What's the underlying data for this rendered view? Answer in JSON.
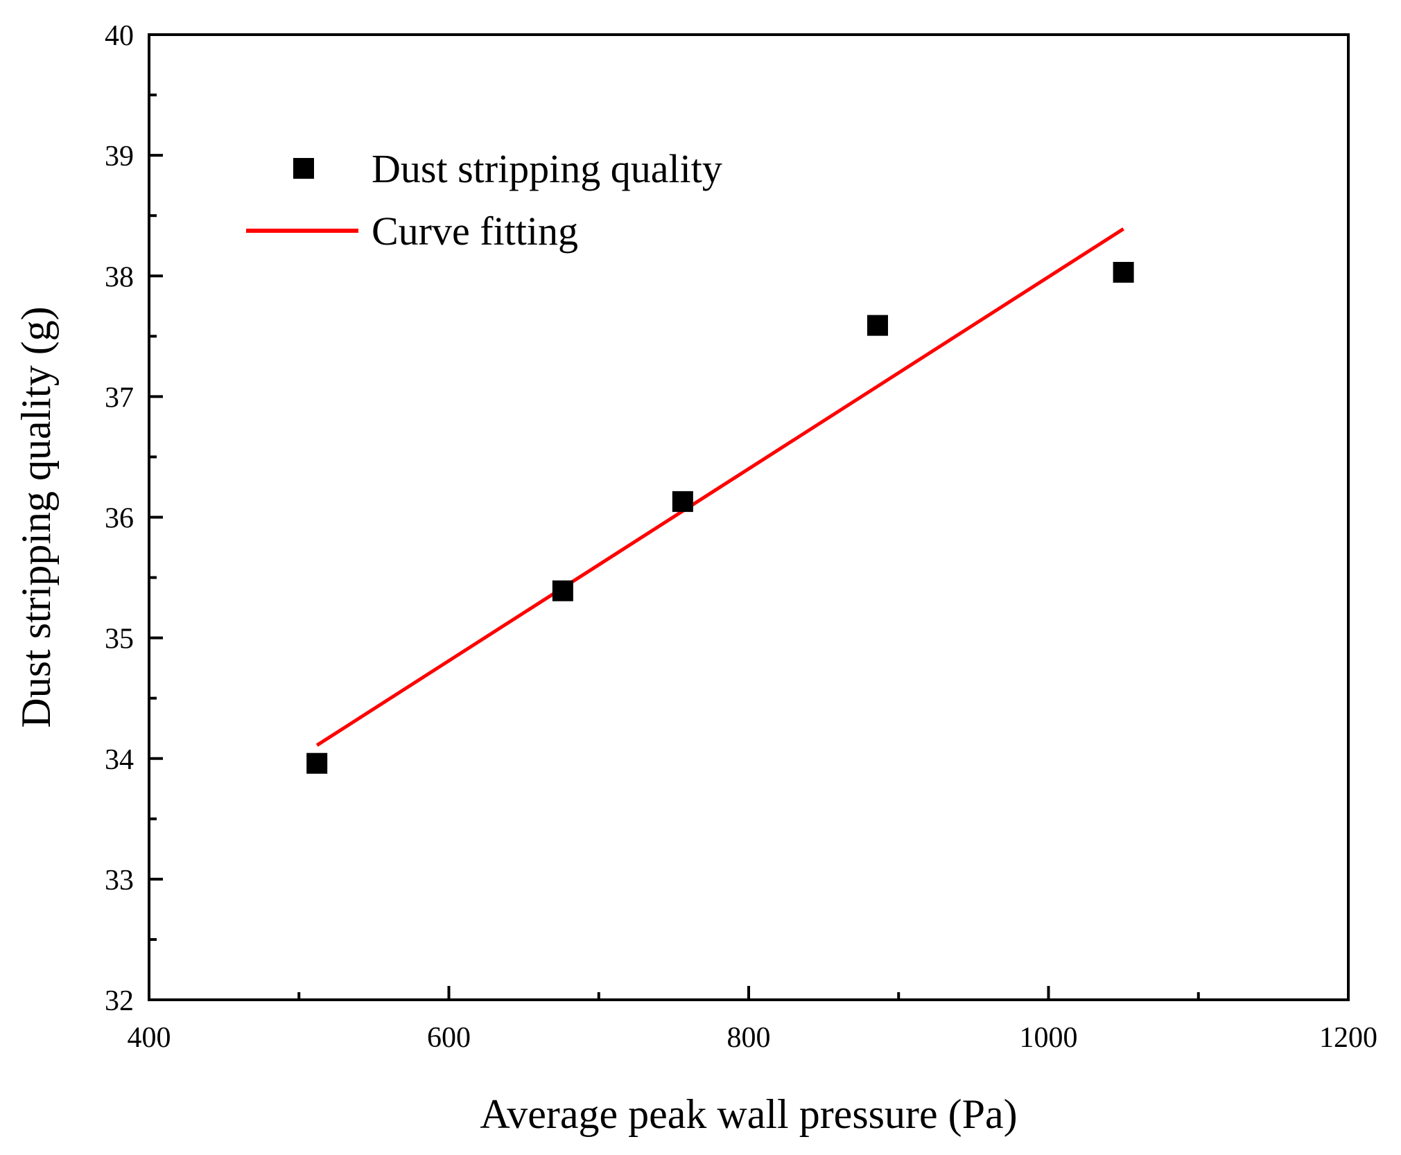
{
  "chart_data": {
    "type": "scatter",
    "title": "",
    "xlabel": "Average peak wall pressure (Pa)",
    "ylabel": "Dust stripping quality (g)",
    "xlim": [
      400,
      1200
    ],
    "ylim": [
      32,
      40
    ],
    "x_major_ticks": [
      400,
      600,
      800,
      1000,
      1200
    ],
    "x_minor_ticks": [
      500,
      700,
      900,
      1100
    ],
    "y_major_ticks": [
      32,
      33,
      34,
      35,
      36,
      37,
      38,
      39,
      40
    ],
    "y_minor_ticks": [
      32.5,
      33.5,
      34.5,
      35.5,
      36.5,
      37.5,
      38.5,
      39.5
    ],
    "grid": false,
    "legend_position": "top-left",
    "series": [
      {
        "name": "Dust stripping quality",
        "type": "scatter",
        "marker": "square",
        "color": "#000000",
        "x": [
          512,
          676,
          756,
          886,
          1050
        ],
        "y": [
          33.96,
          35.39,
          36.13,
          37.59,
          38.03
        ]
      },
      {
        "name": "Curve fitting",
        "type": "line",
        "color": "#ff0000",
        "x": [
          512,
          1050
        ],
        "y": [
          34.11,
          38.39
        ]
      }
    ]
  }
}
